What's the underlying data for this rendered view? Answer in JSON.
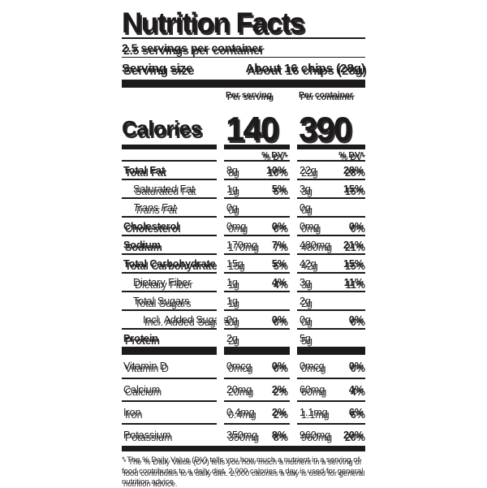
{
  "label": {
    "title": "Nutrition Facts",
    "servings_per_container": "2.5 servings per container",
    "serving_size_label": "Serving size",
    "serving_size_value": "About 16 chips (28g)",
    "column_headers": {
      "per_serving": "Per serving",
      "per_container": "Per container"
    },
    "calories": {
      "label": "Calories",
      "per_serving": "140",
      "per_container": "390"
    },
    "dv_header": {
      "per_serving": "% DV*",
      "per_container": "% DV*"
    },
    "rows": [
      {
        "name": "Total Fat",
        "ps_amount": "8g",
        "ps_dv": "10%",
        "pc_amount": "22g",
        "pc_dv": "28%"
      },
      {
        "name": "Saturated Fat",
        "ps_amount": "1g",
        "ps_dv": "5%",
        "pc_amount": "3g",
        "pc_dv": "15%"
      },
      {
        "name": "Trans Fat",
        "ps_amount": "0g",
        "ps_dv": "",
        "pc_amount": "0g",
        "pc_dv": ""
      },
      {
        "name": "Cholesterol",
        "ps_amount": "0mg",
        "ps_dv": "0%",
        "pc_amount": "0mg",
        "pc_dv": "0%"
      },
      {
        "name": "Sodium",
        "ps_amount": "170mg",
        "ps_dv": "7%",
        "pc_amount": "480mg",
        "pc_dv": "21%"
      },
      {
        "name": "Total Carbohydrate",
        "ps_amount": "15g",
        "ps_dv": "5%",
        "pc_amount": "42g",
        "pc_dv": "15%"
      },
      {
        "name": "Dietary Fiber",
        "ps_amount": "1g",
        "ps_dv": "4%",
        "pc_amount": "3g",
        "pc_dv": "11%"
      },
      {
        "name": "Total Sugars",
        "ps_amount": "1g",
        "ps_dv": "",
        "pc_amount": "2g",
        "pc_dv": ""
      },
      {
        "name": "Incl. Added Sugars",
        "ps_amount": "0g",
        "ps_dv": "0%",
        "pc_amount": "0g",
        "pc_dv": "0%"
      },
      {
        "name": "Protein",
        "ps_amount": "2g",
        "ps_dv": "",
        "pc_amount": "5g",
        "pc_dv": ""
      }
    ],
    "vitamins": [
      {
        "name": "Vitamin D",
        "ps_amount": "0mcg",
        "ps_dv": "0%",
        "pc_amount": "0mcg",
        "pc_dv": "0%"
      },
      {
        "name": "Calcium",
        "ps_amount": "20mg",
        "ps_dv": "2%",
        "pc_amount": "60mg",
        "pc_dv": "4%"
      },
      {
        "name": "Iron",
        "ps_amount": "0.4mg",
        "ps_dv": "2%",
        "pc_amount": "1.1mg",
        "pc_dv": "6%"
      },
      {
        "name": "Potassium",
        "ps_amount": "350mg",
        "ps_dv": "8%",
        "pc_amount": "960mg",
        "pc_dv": "20%"
      }
    ],
    "footnote": "* The % Daily Value (DV) tells you how much a nutrient in a serving of food contributes to a daily diet. 2,000 calories a day is used for general nutrition advice."
  }
}
